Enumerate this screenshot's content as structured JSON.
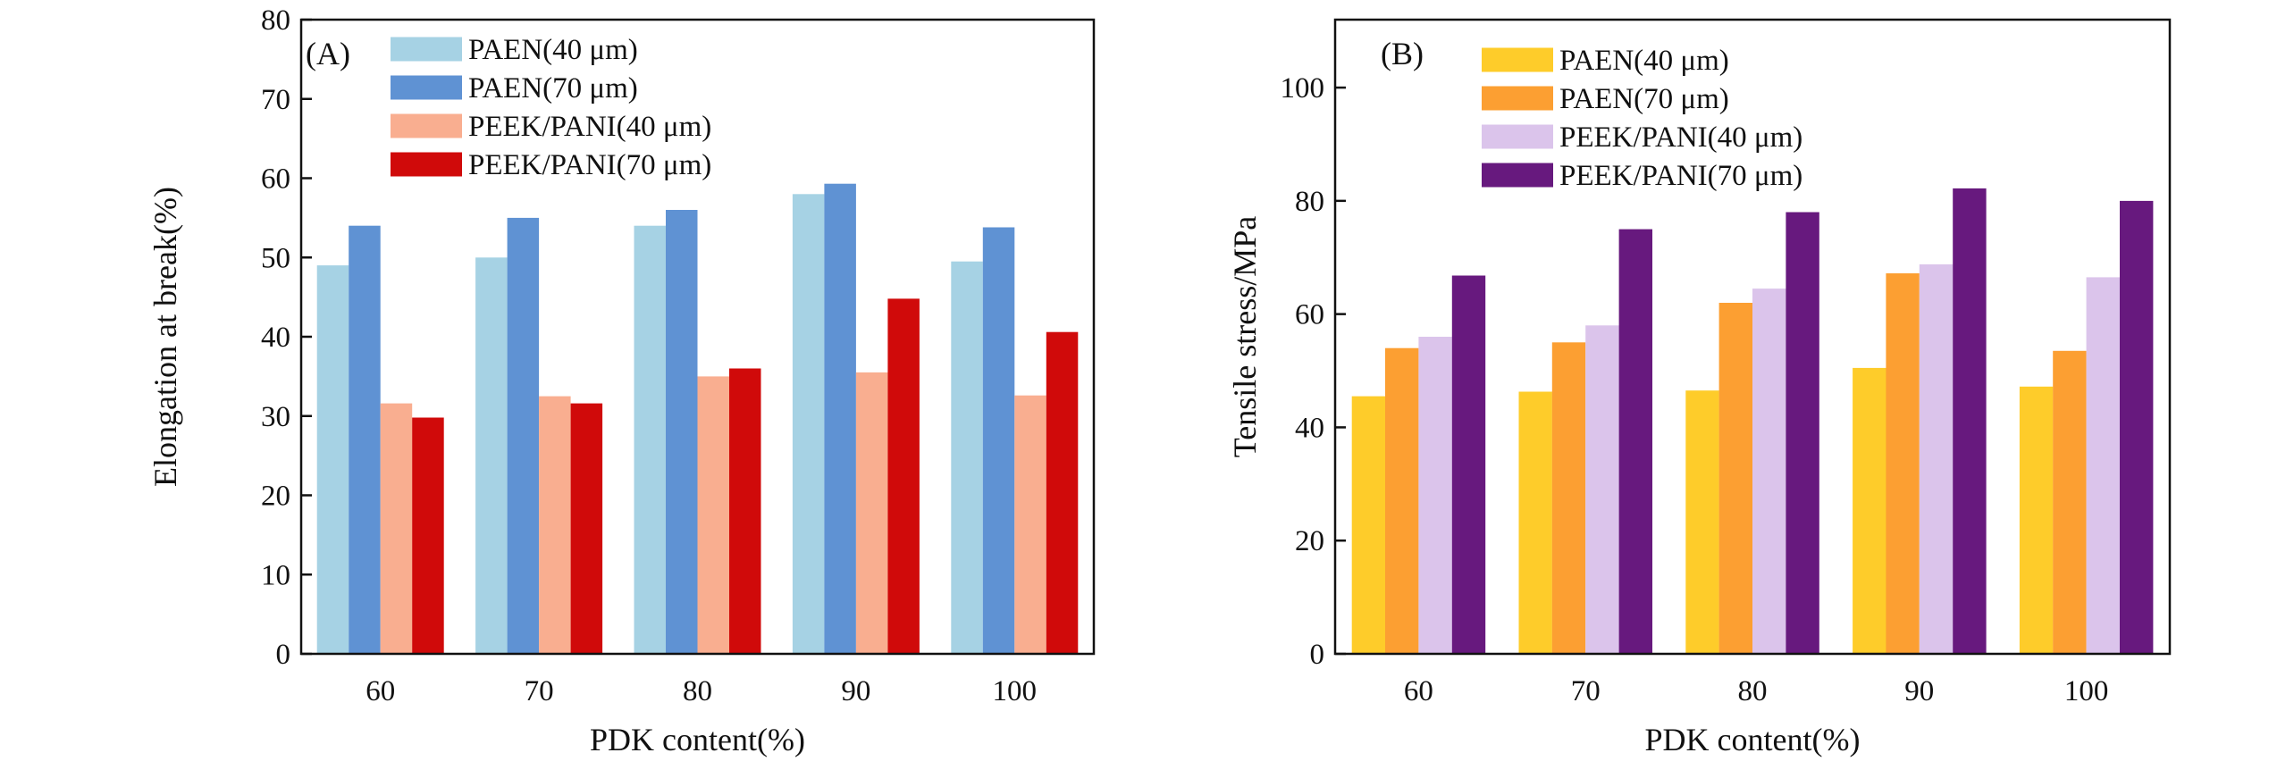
{
  "chart_data": [
    {
      "type": "bar",
      "panel_label": "(A)",
      "categories": [
        "60",
        "70",
        "80",
        "90",
        "100"
      ],
      "xlabel": "PDK content(%)",
      "ylabel": "Elongation at break(%)",
      "ylim": [
        0,
        80
      ],
      "yticks": [
        "0",
        "10",
        "20",
        "30",
        "40",
        "50",
        "60",
        "70",
        "80"
      ],
      "legend_position": "top-left",
      "series": [
        {
          "name": "PAEN(40 μm)",
          "color": "#A6D2E4",
          "values": [
            49,
            50,
            54,
            58,
            49.5
          ]
        },
        {
          "name": "PAEN(70 μm)",
          "color": "#5F92D3",
          "values": [
            54,
            55,
            56,
            59.3,
            53.8
          ]
        },
        {
          "name": "PEEK/PANI(40 μm)",
          "color": "#F9AE90",
          "values": [
            31.6,
            32.5,
            35,
            35.5,
            32.6
          ]
        },
        {
          "name": "PEEK/PANI(70 μm)",
          "color": "#D00A0A",
          "values": [
            29.8,
            31.6,
            36,
            44.8,
            40.6
          ]
        }
      ]
    },
    {
      "type": "bar",
      "panel_label": "(B)",
      "categories": [
        "60",
        "70",
        "80",
        "90",
        "100"
      ],
      "xlabel": "PDK content(%)",
      "ylabel": "Tensile stress/MPa",
      "ylim": [
        0,
        112
      ],
      "yticks": [
        "0",
        "20",
        "40",
        "60",
        "80",
        "100"
      ],
      "legend_position": "top-left",
      "series": [
        {
          "name": "PAEN(40 μm)",
          "color": "#FECC2A",
          "values": [
            45.5,
            46.3,
            46.5,
            50.5,
            47.2
          ]
        },
        {
          "name": "PAEN(70 μm)",
          "color": "#FC9F32",
          "values": [
            54,
            55,
            62,
            67.2,
            53.5
          ]
        },
        {
          "name": "PEEK/PANI(40 μm)",
          "color": "#DBC4EB",
          "values": [
            56,
            58,
            64.5,
            68.8,
            66.5
          ]
        },
        {
          "name": "PEEK/PANI(70 μm)",
          "color": "#67197E",
          "values": [
            66.8,
            75,
            78,
            82.2,
            80
          ]
        }
      ]
    }
  ]
}
